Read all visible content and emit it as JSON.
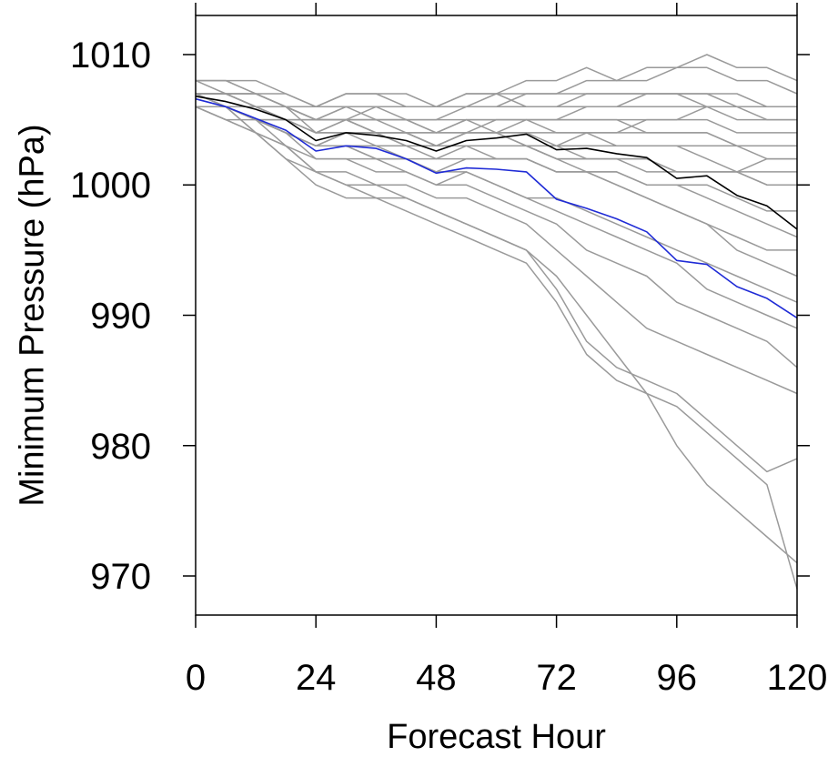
{
  "chart_data": {
    "type": "line",
    "title": "",
    "xlabel": "Forecast Hour",
    "ylabel": "Minimum Pressure (hPa)",
    "xlim": [
      0,
      120
    ],
    "ylim": [
      967,
      1013
    ],
    "x_ticks": [
      0,
      24,
      48,
      72,
      96,
      120
    ],
    "x_tick_labels": [
      "0",
      "24",
      "48",
      "72",
      "96",
      "120"
    ],
    "y_ticks": [
      970,
      980,
      990,
      1000,
      1010
    ],
    "y_tick_labels": [
      "970",
      "980",
      "990",
      "1000",
      "1010"
    ],
    "grid": false,
    "legend": "none",
    "colors": {
      "ensemble": "#9a9a9a",
      "observed": "#000000",
      "forecast": "#1f2bd6"
    },
    "x": [
      0,
      6,
      12,
      18,
      24,
      30,
      36,
      42,
      48,
      54,
      60,
      66,
      72,
      78,
      84,
      90,
      96,
      102,
      108,
      114,
      120
    ],
    "ensemble_members": [
      [
        1007,
        1007,
        1006,
        1006,
        1005,
        1005,
        1005,
        1004,
        1004,
        1005,
        1004,
        1005,
        1004,
        1004,
        1003,
        1003,
        1003,
        1002,
        1001,
        1002,
        1002
      ],
      [
        1006,
        1006,
        1005,
        1005,
        1004,
        1004,
        1004,
        1003,
        1003,
        1003,
        1002,
        1002,
        1001,
        1001,
        1001,
        1000,
        1000,
        999,
        998,
        997,
        996
      ],
      [
        1007,
        1006,
        1006,
        1005,
        1004,
        1005,
        1004,
        1004,
        1003,
        1004,
        1004,
        1003,
        1003,
        1004,
        1004,
        1005,
        1005,
        1006,
        1006,
        1005,
        1005
      ],
      [
        1008,
        1008,
        1008,
        1007,
        1006,
        1007,
        1007,
        1007,
        1006,
        1007,
        1007,
        1008,
        1008,
        1009,
        1008,
        1009,
        1009,
        1010,
        1009,
        1009,
        1008
      ],
      [
        1006,
        1006,
        1005,
        1004,
        1003,
        1003,
        1002,
        1002,
        1001,
        1002,
        1002,
        1002,
        1001,
        1001,
        1001,
        1000,
        1000,
        1000,
        999,
        998,
        998
      ],
      [
        1007,
        1007,
        1006,
        1005,
        1005,
        1005,
        1004,
        1004,
        1004,
        1004,
        1005,
        1005,
        1005,
        1006,
        1006,
        1007,
        1007,
        1007,
        1006,
        1006,
        1006
      ],
      [
        1006,
        1005,
        1005,
        1004,
        1003,
        1004,
        1003,
        1003,
        1002,
        1003,
        1003,
        1003,
        1002,
        1002,
        1002,
        1002,
        1001,
        1001,
        1001,
        1000,
        1000
      ],
      [
        1007,
        1007,
        1006,
        1006,
        1005,
        1006,
        1006,
        1005,
        1005,
        1006,
        1006,
        1007,
        1007,
        1008,
        1008,
        1008,
        1009,
        1009,
        1008,
        1008,
        1007
      ],
      [
        1006,
        1006,
        1005,
        1004,
        1002,
        1002,
        1002,
        1001,
        1000,
        1001,
        1000,
        999,
        999,
        998,
        997,
        996,
        995,
        994,
        993,
        992,
        991
      ],
      [
        1006,
        1005,
        1004,
        1003,
        1002,
        1002,
        1001,
        1001,
        1000,
        1000,
        999,
        998,
        997,
        995,
        994,
        993,
        991,
        990,
        989,
        988,
        986
      ],
      [
        1007,
        1006,
        1005,
        1004,
        1003,
        1003,
        1002,
        1002,
        1001,
        1001,
        1000,
        999,
        998,
        997,
        996,
        995,
        994,
        992,
        991,
        990,
        989
      ],
      [
        1007,
        1006,
        1005,
        1003,
        1001,
        1000,
        1000,
        999,
        998,
        997,
        996,
        995,
        993,
        990,
        987,
        984,
        980,
        977,
        975,
        973,
        971
      ],
      [
        1006,
        1006,
        1004,
        1002,
        1000,
        999,
        999,
        998,
        997,
        996,
        995,
        994,
        991,
        987,
        985,
        984,
        983,
        981,
        979,
        977,
        969
      ],
      [
        1007,
        1006,
        1004,
        1002,
        1001,
        1000,
        999,
        999,
        998,
        997,
        996,
        995,
        992,
        988,
        986,
        985,
        984,
        982,
        980,
        978,
        979
      ],
      [
        1006,
        1005,
        1004,
        1003,
        1001,
        1001,
        1000,
        1000,
        999,
        999,
        998,
        997,
        995,
        993,
        991,
        989,
        988,
        987,
        986,
        985,
        984
      ],
      [
        1008,
        1007,
        1007,
        1006,
        1005,
        1006,
        1005,
        1005,
        1004,
        1005,
        1005,
        1005,
        1005,
        1005,
        1005,
        1004,
        1004,
        1004,
        1003,
        1003,
        1003
      ],
      [
        1007,
        1007,
        1007,
        1006,
        1006,
        1006,
        1006,
        1006,
        1006,
        1006,
        1007,
        1007,
        1007,
        1007,
        1007,
        1007,
        1007,
        1006,
        1006,
        1006,
        1006
      ],
      [
        1008,
        1008,
        1007,
        1007,
        1006,
        1007,
        1007,
        1006,
        1006,
        1007,
        1007,
        1006,
        1006,
        1006,
        1006,
        1006,
        1006,
        1006,
        1005,
        1005,
        1005
      ],
      [
        1006,
        1006,
        1006,
        1005,
        1005,
        1005,
        1005,
        1005,
        1005,
        1005,
        1005,
        1005,
        1005,
        1005,
        1005,
        1005,
        1005,
        1005,
        1004,
        1004,
        1004
      ],
      [
        1007,
        1007,
        1006,
        1006,
        1004,
        1005,
        1004,
        1004,
        1003,
        1004,
        1004,
        1004,
        1003,
        1003,
        1003,
        1003,
        1003,
        1003,
        1003,
        1002,
        1002
      ],
      [
        1006,
        1006,
        1005,
        1005,
        1004,
        1004,
        1004,
        1004,
        1003,
        1004,
        1004,
        1004,
        1004,
        1004,
        1004,
        1004,
        1004,
        1004,
        1003,
        1003,
        1003
      ],
      [
        1008,
        1008,
        1007,
        1006,
        1005,
        1005,
        1005,
        1005,
        1004,
        1004,
        1004,
        1003,
        1003,
        1002,
        1002,
        1001,
        1001,
        1001,
        1001,
        1000,
        1000
      ],
      [
        1006,
        1006,
        1005,
        1004,
        1003,
        1003,
        1003,
        1002,
        1002,
        1002,
        1002,
        1002,
        1001,
        1001,
        1000,
        999,
        998,
        997,
        996,
        995,
        995
      ],
      [
        1007,
        1007,
        1006,
        1005,
        1004,
        1004,
        1004,
        1004,
        1003,
        1003,
        1003,
        1003,
        1002,
        1001,
        1000,
        999,
        998,
        997,
        995,
        994,
        993
      ],
      [
        1007,
        1007,
        1007,
        1006,
        1005,
        1005,
        1006,
        1006,
        1006,
        1006,
        1006,
        1006,
        1006,
        1007,
        1007,
        1007,
        1007,
        1007,
        1007,
        1006,
        1006
      ],
      [
        1006,
        1006,
        1005,
        1004,
        1003,
        1004,
        1004,
        1003,
        1003,
        1003,
        1003,
        1003,
        1002,
        1002,
        1002,
        1002,
        1001,
        1001,
        1001,
        1001,
        1001
      ]
    ],
    "series": [
      {
        "name": "",
        "role": "observed",
        "color": "#000000",
        "values": [
          1006.8,
          1006.4,
          1005.8,
          1005.0,
          1003.4,
          1004.0,
          1003.8,
          1003.4,
          1002.6,
          1003.4,
          1003.6,
          1003.9,
          1002.7,
          1002.8,
          1002.4,
          1002.1,
          1000.5,
          1000.7,
          999.2,
          998.4,
          996.6
        ]
      },
      {
        "name": "",
        "role": "forecast",
        "color": "#1f2bd6",
        "values": [
          1006.6,
          1006.0,
          1005.1,
          1004.2,
          1002.6,
          1003.0,
          1002.8,
          1002.0,
          1000.9,
          1001.3,
          1001.2,
          1001.0,
          998.9,
          998.2,
          997.4,
          996.4,
          994.2,
          993.9,
          992.2,
          991.3,
          989.8
        ]
      }
    ]
  }
}
